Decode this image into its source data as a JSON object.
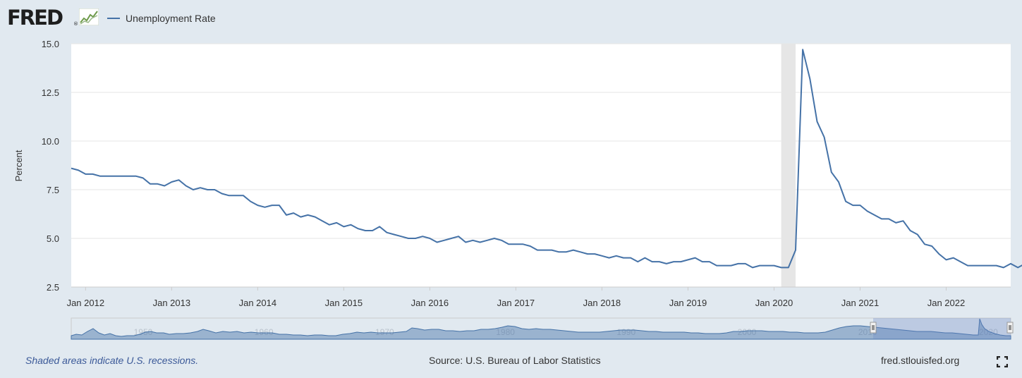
{
  "header": {
    "logo": "FRED",
    "logo_mark": "®",
    "logo_icon": "line-graph-icon"
  },
  "legend": {
    "label": "Unemployment Rate",
    "color": "#4572a7"
  },
  "footer": {
    "note": "Shaded areas indicate U.S. recessions.",
    "source": "Source: U.S. Bureau of Labor Statistics",
    "site": "fred.stlouisfed.org",
    "fullscreen_icon": "fullscreen-icon"
  },
  "chart_data": {
    "type": "line",
    "title": "",
    "xlabel": "",
    "ylabel": "Percent",
    "ylim": [
      2.5,
      15.0
    ],
    "yticks": [
      "2.5",
      "5.0",
      "7.5",
      "10.0",
      "12.5",
      "15.0"
    ],
    "xlim": [
      "2011-11",
      "2022-10"
    ],
    "xticks": [
      "Jan 2012",
      "Jan 2013",
      "Jan 2014",
      "Jan 2015",
      "Jan 2016",
      "Jan 2017",
      "Jan 2018",
      "Jan 2019",
      "Jan 2020",
      "Jan 2021",
      "Jan 2022"
    ],
    "grid": true,
    "recessions": [
      {
        "start": "2020-02",
        "end": "2020-04"
      }
    ],
    "colors": {
      "line": "#4572a7",
      "recession": "#e6e6e6",
      "grid": "#e6e6e6"
    },
    "series": [
      {
        "name": "Unemployment Rate",
        "start": "2011-11",
        "frequency": "monthly",
        "values": [
          8.6,
          8.5,
          8.3,
          8.3,
          8.2,
          8.2,
          8.2,
          8.2,
          8.2,
          8.2,
          8.1,
          7.8,
          7.8,
          7.7,
          7.9,
          8.0,
          7.7,
          7.5,
          7.6,
          7.5,
          7.5,
          7.3,
          7.2,
          7.2,
          7.2,
          6.9,
          6.7,
          6.6,
          6.7,
          6.7,
          6.2,
          6.3,
          6.1,
          6.2,
          6.1,
          5.9,
          5.7,
          5.8,
          5.6,
          5.7,
          5.5,
          5.4,
          5.4,
          5.6,
          5.3,
          5.2,
          5.1,
          5.0,
          5.0,
          5.1,
          5.0,
          4.8,
          4.9,
          5.0,
          5.1,
          4.8,
          4.9,
          4.8,
          4.9,
          5.0,
          4.9,
          4.7,
          4.7,
          4.7,
          4.6,
          4.4,
          4.4,
          4.4,
          4.3,
          4.3,
          4.4,
          4.3,
          4.2,
          4.2,
          4.1,
          4.0,
          4.1,
          4.0,
          4.0,
          3.8,
          4.0,
          3.8,
          3.8,
          3.7,
          3.8,
          3.8,
          3.9,
          4.0,
          3.8,
          3.8,
          3.6,
          3.6,
          3.6,
          3.7,
          3.7,
          3.5,
          3.6,
          3.6,
          3.6,
          3.5,
          3.5,
          4.4,
          14.7,
          13.2,
          11.0,
          10.2,
          8.4,
          7.9,
          6.9,
          6.7,
          6.7,
          6.4,
          6.2,
          6.0,
          6.0,
          5.8,
          5.9,
          5.4,
          5.2,
          4.7,
          4.6,
          4.2,
          3.9,
          4.0,
          3.8,
          3.6,
          3.6,
          3.6,
          3.6,
          3.6,
          3.5,
          3.7,
          3.5,
          3.7
        ]
      }
    ],
    "navigator": {
      "labels": [
        "1950",
        "1960",
        "1970",
        "1980",
        "1990",
        "2000",
        "2010",
        "2020"
      ],
      "color": "#4572a7"
    }
  }
}
